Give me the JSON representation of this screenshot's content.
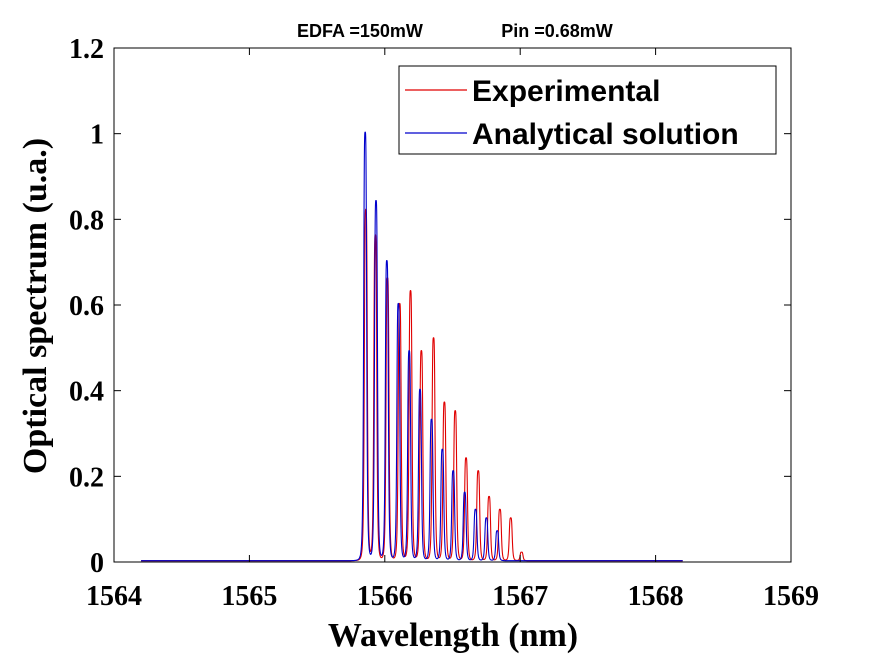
{
  "chart_data": {
    "type": "line",
    "title_parts": [
      "EDFA =150mW",
      "Pin =0.68mW"
    ],
    "xlabel": "Wavelength (nm)",
    "ylabel": "Optical spectrum (u.a.)",
    "xlim": [
      1564,
      1569
    ],
    "ylim": [
      0,
      1.2
    ],
    "xticks": [
      "1564",
      "1565",
      "1566",
      "1567",
      "1568",
      "1569"
    ],
    "yticks": [
      "0",
      "0.2",
      "0.4",
      "0.6",
      "0.8",
      "1",
      "1.2"
    ],
    "grid": false,
    "legend_position": "top-right",
    "x_range_plotted": [
      1564.2,
      1568.2
    ],
    "series": [
      {
        "name": "Experimental",
        "color": "#e00000",
        "baseline": 0.003,
        "peak_width": 0.012,
        "peaks": [
          {
            "x": 1565.86,
            "y": 0.82
          },
          {
            "x": 1565.93,
            "y": 0.76
          },
          {
            "x": 1566.02,
            "y": 0.66
          },
          {
            "x": 1566.11,
            "y": 0.6
          },
          {
            "x": 1566.19,
            "y": 0.63
          },
          {
            "x": 1566.27,
            "y": 0.49
          },
          {
            "x": 1566.36,
            "y": 0.52
          },
          {
            "x": 1566.44,
            "y": 0.37
          },
          {
            "x": 1566.52,
            "y": 0.35
          },
          {
            "x": 1566.6,
            "y": 0.24
          },
          {
            "x": 1566.69,
            "y": 0.21
          },
          {
            "x": 1566.77,
            "y": 0.15
          },
          {
            "x": 1566.85,
            "y": 0.12
          },
          {
            "x": 1566.93,
            "y": 0.1
          },
          {
            "x": 1567.01,
            "y": 0.02
          }
        ]
      },
      {
        "name": "Analytical solution",
        "color": "#0000cc",
        "baseline": 0.003,
        "peak_width": 0.012,
        "peaks": [
          {
            "x": 1565.855,
            "y": 1.0
          },
          {
            "x": 1565.935,
            "y": 0.84
          },
          {
            "x": 1566.015,
            "y": 0.7
          },
          {
            "x": 1566.1,
            "y": 0.6
          },
          {
            "x": 1566.18,
            "y": 0.49
          },
          {
            "x": 1566.26,
            "y": 0.4
          },
          {
            "x": 1566.345,
            "y": 0.33
          },
          {
            "x": 1566.425,
            "y": 0.26
          },
          {
            "x": 1566.505,
            "y": 0.21
          },
          {
            "x": 1566.59,
            "y": 0.16
          },
          {
            "x": 1566.67,
            "y": 0.12
          },
          {
            "x": 1566.75,
            "y": 0.1
          },
          {
            "x": 1566.83,
            "y": 0.07
          }
        ]
      }
    ]
  }
}
